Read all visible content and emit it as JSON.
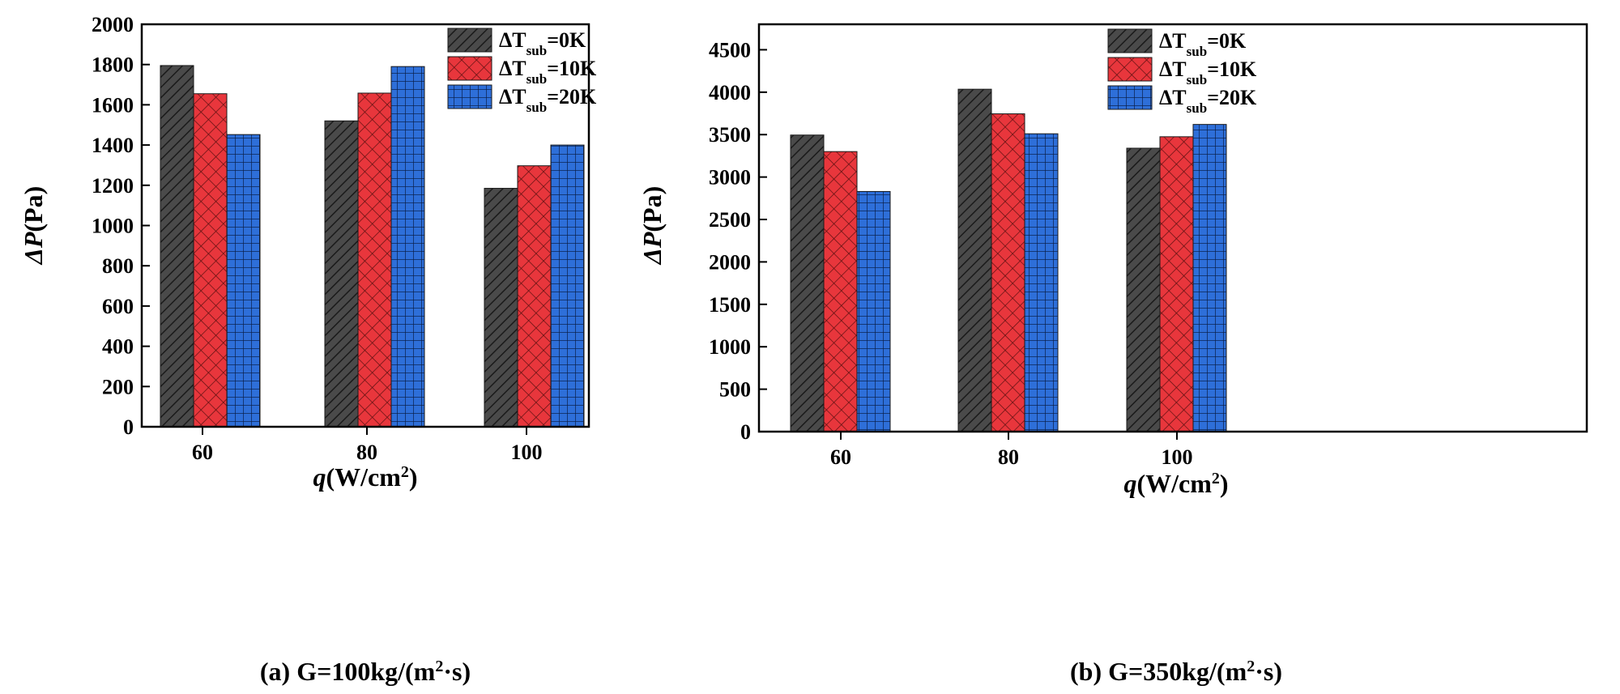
{
  "chart_data": [
    {
      "type": "bar",
      "panel_label": "(a)",
      "caption_prefix": "G=100kg/(m",
      "caption_sup": "2",
      "caption_suffix": "·s)",
      "xlabel_italic": "q",
      "xlabel_rest": "(W/cm",
      "xlabel_sup": "2",
      "xlabel_close": ")",
      "ylabel_italic": "ΔP",
      "ylabel_rest": "(Pa)",
      "categories": [
        "60",
        "80",
        "100"
      ],
      "ylim": [
        0,
        2000
      ],
      "yticks": [
        0,
        200,
        400,
        600,
        800,
        1000,
        1200,
        1400,
        1600,
        1800,
        2000
      ],
      "legend_position": "top-right",
      "series": [
        {
          "name_main": "ΔT",
          "name_sub": "sub",
          "name_tail": "=0K",
          "pattern": "diag",
          "color": "#4a4a4a",
          "values": [
            1795,
            1520,
            1185
          ]
        },
        {
          "name_main": "ΔT",
          "name_sub": "sub",
          "name_tail": "=10K",
          "pattern": "cross",
          "color": "#e8363c",
          "values": [
            1655,
            1658,
            1297
          ]
        },
        {
          "name_main": "ΔT",
          "name_sub": "sub",
          "name_tail": "=20K",
          "pattern": "grid",
          "color": "#2e6fd9",
          "values": [
            1452,
            1790,
            1400
          ]
        }
      ]
    },
    {
      "type": "bar",
      "panel_label": "(b)",
      "caption_prefix": "G=350kg/(m",
      "caption_sup": "2",
      "caption_suffix": "·s)",
      "xlabel_italic": "q",
      "xlabel_rest": "(W/cm",
      "xlabel_sup": "2",
      "xlabel_close": ")",
      "ylabel_italic": "ΔP",
      "ylabel_rest": "(Pa)",
      "categories": [
        "60",
        "80",
        "100"
      ],
      "ylim": [
        0,
        4800
      ],
      "yticks": [
        0,
        500,
        1000,
        1500,
        2000,
        2500,
        3000,
        3500,
        4000,
        4500
      ],
      "legend_position": "top-right",
      "series": [
        {
          "name_main": "ΔT",
          "name_sub": "sub",
          "name_tail": "=0K",
          "pattern": "diag",
          "color": "#4a4a4a",
          "values": [
            3495,
            4035,
            3340
          ]
        },
        {
          "name_main": "ΔT",
          "name_sub": "sub",
          "name_tail": "=10K",
          "pattern": "cross",
          "color": "#e8363c",
          "values": [
            3300,
            3745,
            3475
          ]
        },
        {
          "name_main": "ΔT",
          "name_sub": "sub",
          "name_tail": "=20K",
          "pattern": "grid",
          "color": "#2e6fd9",
          "values": [
            2830,
            3510,
            3620
          ]
        }
      ]
    }
  ]
}
